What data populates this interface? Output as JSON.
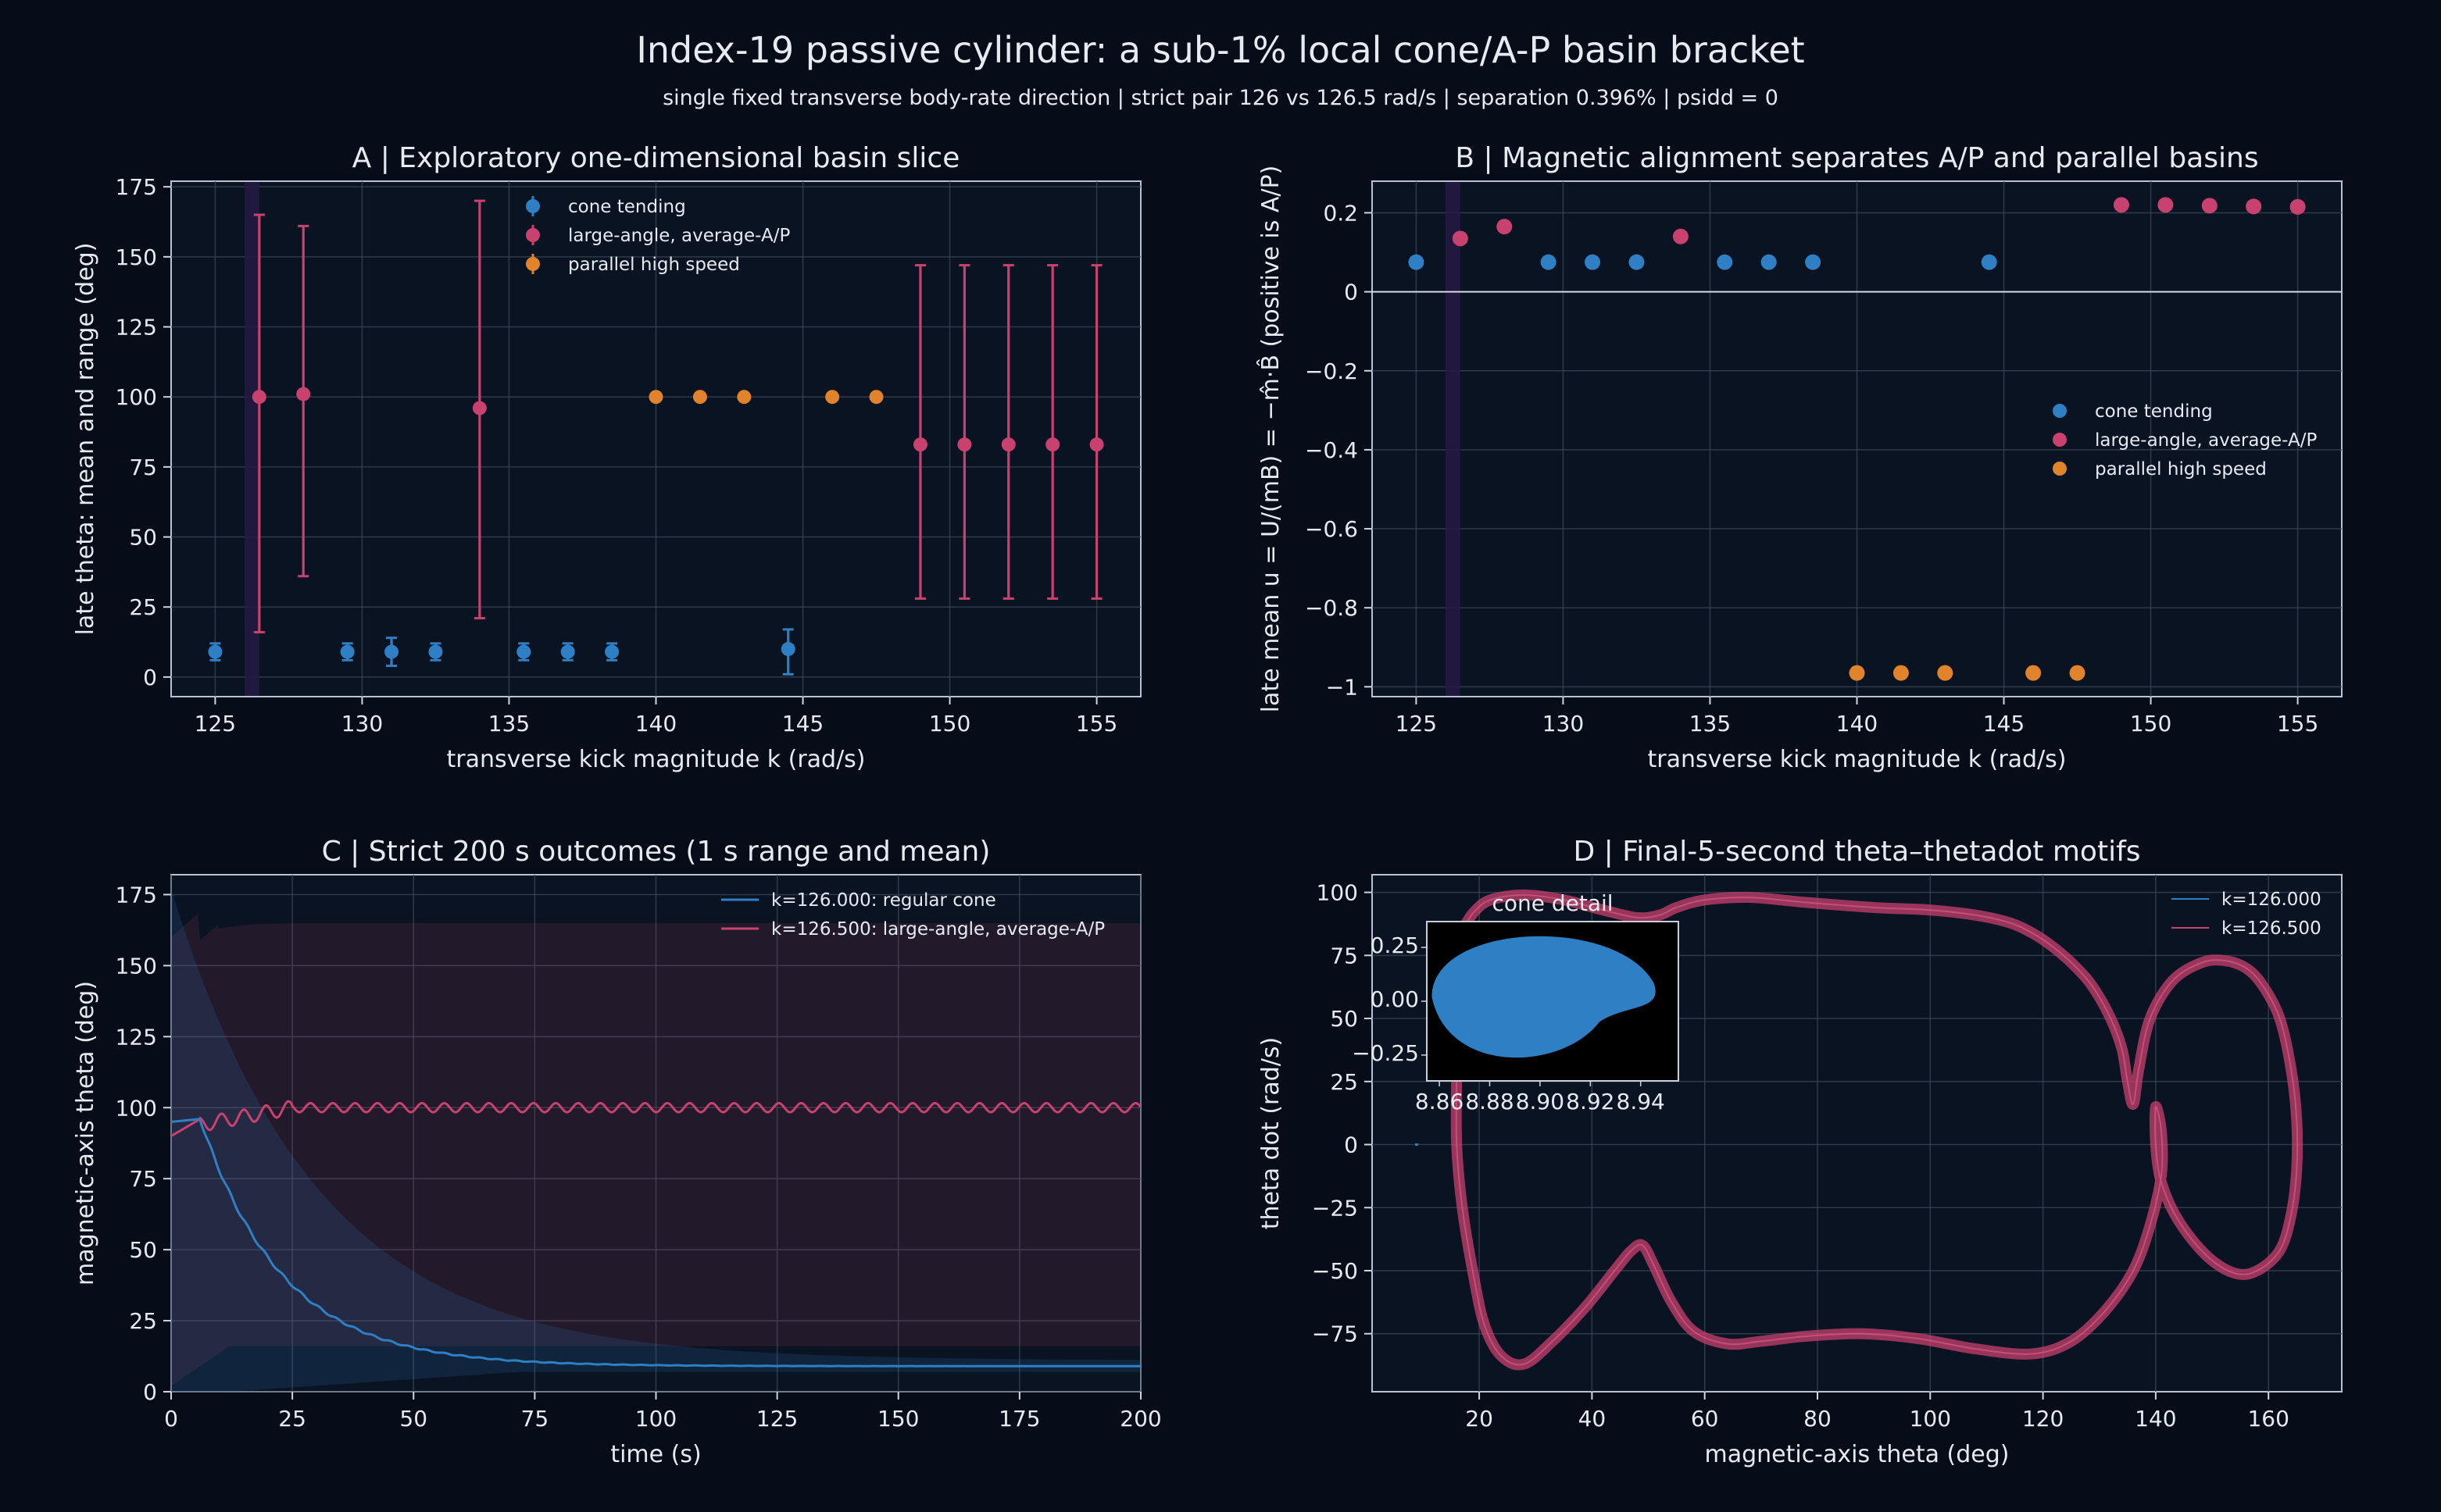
{
  "figure": {
    "title": "Index-19 passive cylinder: a sub-1% local cone/A-P basin bracket",
    "subtitle": "single fixed transverse body-rate direction  |  strict pair 126 vs 126.5 rad/s  |  separation 0.396%  |  psidd = 0"
  },
  "colors": {
    "background": "#060d18",
    "panel": "#0a1322",
    "cone": "#2f7fc4",
    "aap": "#c9426f",
    "parallel": "#e0832a",
    "strict_band": "#241b44"
  },
  "chart_data": [
    {
      "id": "A",
      "type": "scatter",
      "title": "A  |  Exploratory one-dimensional basin slice",
      "xlabel": "transverse kick magnitude k (rad/s)",
      "ylabel": "late theta: mean and range (deg)",
      "xlim": [
        123.5,
        156.5
      ],
      "ylim": [
        -7,
        177
      ],
      "xticks": [
        125,
        130,
        135,
        140,
        145,
        150,
        155
      ],
      "yticks": [
        0,
        25,
        50,
        75,
        100,
        125,
        150,
        175
      ],
      "grid": true,
      "legend_position": "top-center",
      "strict_band": [
        126,
        126.5
      ],
      "series": [
        {
          "name": "cone tending",
          "color_key": "cone",
          "points": [
            {
              "x": 125,
              "y": 9,
              "lo": 6,
              "hi": 12
            },
            {
              "x": 129.5,
              "y": 9,
              "lo": 6,
              "hi": 12
            },
            {
              "x": 131,
              "y": 9,
              "lo": 4,
              "hi": 14
            },
            {
              "x": 132.5,
              "y": 9,
              "lo": 6,
              "hi": 12
            },
            {
              "x": 135.5,
              "y": 9,
              "lo": 6,
              "hi": 12
            },
            {
              "x": 137,
              "y": 9,
              "lo": 6,
              "hi": 12
            },
            {
              "x": 138.5,
              "y": 9,
              "lo": 6,
              "hi": 12
            },
            {
              "x": 144.5,
              "y": 10,
              "lo": 1,
              "hi": 17
            }
          ]
        },
        {
          "name": "large-angle, average-A/P",
          "color_key": "aap",
          "points": [
            {
              "x": 126.5,
              "y": 100,
              "lo": 16,
              "hi": 165
            },
            {
              "x": 128,
              "y": 101,
              "lo": 36,
              "hi": 161
            },
            {
              "x": 134,
              "y": 96,
              "lo": 21,
              "hi": 170
            },
            {
              "x": 149,
              "y": 83,
              "lo": 28,
              "hi": 147
            },
            {
              "x": 150.5,
              "y": 83,
              "lo": 28,
              "hi": 147
            },
            {
              "x": 152,
              "y": 83,
              "lo": 28,
              "hi": 147
            },
            {
              "x": 153.5,
              "y": 83,
              "lo": 28,
              "hi": 147
            },
            {
              "x": 155,
              "y": 83,
              "lo": 28,
              "hi": 147
            }
          ]
        },
        {
          "name": "parallel high speed",
          "color_key": "parallel",
          "points": [
            {
              "x": 140,
              "y": 100,
              "lo": 100,
              "hi": 100
            },
            {
              "x": 141.5,
              "y": 100,
              "lo": 100,
              "hi": 100
            },
            {
              "x": 143,
              "y": 100,
              "lo": 100,
              "hi": 100
            },
            {
              "x": 146,
              "y": 100,
              "lo": 100,
              "hi": 100
            },
            {
              "x": 147.5,
              "y": 100,
              "lo": 100,
              "hi": 100
            }
          ]
        }
      ]
    },
    {
      "id": "B",
      "type": "scatter",
      "title": "B  |  Magnetic alignment separates A/P and parallel basins",
      "xlabel": "transverse kick magnitude k (rad/s)",
      "ylabel": "late mean u = U/(mB) = −m̂·B̂ (positive is A/P)",
      "xlim": [
        123.5,
        156.5
      ],
      "ylim": [
        -1.025,
        0.28
      ],
      "xticks": [
        125,
        130,
        135,
        140,
        145,
        150,
        155
      ],
      "yticks": [
        -1.0,
        -0.8,
        -0.6,
        -0.4,
        -0.2,
        0.0,
        0.2
      ],
      "grid": true,
      "legend_position": "center-right",
      "zero_line": 0,
      "strict_band": [
        126,
        126.5
      ],
      "series": [
        {
          "name": "cone tending",
          "color_key": "cone",
          "points": [
            {
              "x": 125,
              "y": 0.075
            },
            {
              "x": 129.5,
              "y": 0.075
            },
            {
              "x": 131,
              "y": 0.075
            },
            {
              "x": 132.5,
              "y": 0.075
            },
            {
              "x": 135.5,
              "y": 0.075
            },
            {
              "x": 137,
              "y": 0.075
            },
            {
              "x": 138.5,
              "y": 0.075
            },
            {
              "x": 144.5,
              "y": 0.075
            }
          ]
        },
        {
          "name": "large-angle, average-A/P",
          "color_key": "aap",
          "points": [
            {
              "x": 126.5,
              "y": 0.135
            },
            {
              "x": 128,
              "y": 0.165
            },
            {
              "x": 134,
              "y": 0.14
            },
            {
              "x": 149,
              "y": 0.22
            },
            {
              "x": 150.5,
              "y": 0.22
            },
            {
              "x": 152,
              "y": 0.218
            },
            {
              "x": 153.5,
              "y": 0.216
            },
            {
              "x": 155,
              "y": 0.215
            }
          ]
        },
        {
          "name": "parallel high speed",
          "color_key": "parallel",
          "points": [
            {
              "x": 140,
              "y": -0.965
            },
            {
              "x": 141.5,
              "y": -0.965
            },
            {
              "x": 143,
              "y": -0.965
            },
            {
              "x": 146,
              "y": -0.965
            },
            {
              "x": 147.5,
              "y": -0.965
            }
          ]
        }
      ]
    },
    {
      "id": "C",
      "type": "line",
      "title": "C  |  Strict 200 s outcomes (1 s range and mean)",
      "xlabel": "time (s)",
      "ylabel": "magnetic-axis theta (deg)",
      "xlim": [
        0,
        200
      ],
      "ylim": [
        0,
        182
      ],
      "xticks": [
        0,
        25,
        50,
        75,
        100,
        125,
        150,
        175,
        200
      ],
      "yticks": [
        0,
        25,
        50,
        75,
        100,
        125,
        150,
        175
      ],
      "grid": true,
      "legend_position": "top-right",
      "series": [
        {
          "name": "k=126.000: regular cone",
          "color_key": "cone",
          "model": "decay",
          "start": 95,
          "peak_time": 6,
          "peak": 96,
          "final": 9,
          "tau": 17,
          "band_upper_start": 175,
          "band_upper_tau": 30,
          "band_lower": 0
        },
        {
          "name": "k=126.500: large-angle, average-A/P",
          "color_key": "aap",
          "model": "oscillate",
          "start": 90,
          "settle": 100,
          "settle_time": 25,
          "osc_amp": 1.6,
          "osc_period": 4.6,
          "band_upper": 165,
          "band_lower": 16
        }
      ]
    },
    {
      "id": "D",
      "type": "line",
      "title": "D  |  Final-5-second theta–thetadot motifs",
      "xlabel": "magnetic-axis theta (deg)",
      "ylabel": "theta dot (rad/s)",
      "xlim": [
        1,
        173
      ],
      "ylim": [
        -98,
        107
      ],
      "xticks": [
        20,
        40,
        60,
        80,
        100,
        120,
        140,
        160
      ],
      "yticks": [
        -75,
        -50,
        -25,
        0,
        25,
        50,
        75,
        100
      ],
      "grid": true,
      "legend_position": "top-right",
      "series": [
        {
          "name": "k=126.000",
          "color_key": "cone"
        },
        {
          "name": "k=126.500",
          "color_key": "aap"
        }
      ],
      "orbit_k126_5": [
        [
          17,
          85
        ],
        [
          19,
          92
        ],
        [
          22,
          97
        ],
        [
          28,
          99
        ],
        [
          35,
          97
        ],
        [
          42,
          93
        ],
        [
          48,
          90
        ],
        [
          52,
          91
        ],
        [
          55,
          94
        ],
        [
          60,
          97
        ],
        [
          68,
          98
        ],
        [
          78,
          96
        ],
        [
          90,
          94
        ],
        [
          100,
          93
        ],
        [
          108,
          91
        ],
        [
          114,
          88
        ],
        [
          118,
          84
        ],
        [
          122,
          78
        ],
        [
          126,
          70
        ],
        [
          129,
          62
        ],
        [
          132,
          50
        ],
        [
          134,
          38
        ],
        [
          135,
          25
        ],
        [
          136,
          16
        ],
        [
          137,
          30
        ],
        [
          139,
          50
        ],
        [
          143,
          65
        ],
        [
          148,
          72
        ],
        [
          152,
          73
        ],
        [
          156,
          70
        ],
        [
          159,
          63
        ],
        [
          162,
          50
        ],
        [
          164,
          30
        ],
        [
          165,
          10
        ],
        [
          165,
          -10
        ],
        [
          164,
          -28
        ],
        [
          162,
          -42
        ],
        [
          158,
          -50
        ],
        [
          154,
          -51
        ],
        [
          149,
          -44
        ],
        [
          144,
          -30
        ],
        [
          141,
          -15
        ],
        [
          140,
          0
        ],
        [
          140,
          15
        ],
        [
          141,
          5
        ],
        [
          141,
          -12
        ],
        [
          139,
          -32
        ],
        [
          136,
          -50
        ],
        [
          131,
          -66
        ],
        [
          125,
          -78
        ],
        [
          118,
          -83
        ],
        [
          108,
          -81
        ],
        [
          98,
          -77
        ],
        [
          88,
          -75
        ],
        [
          78,
          -76
        ],
        [
          70,
          -78
        ],
        [
          64,
          -79
        ],
        [
          58,
          -74
        ],
        [
          54,
          -62
        ],
        [
          51,
          -48
        ],
        [
          49,
          -40
        ],
        [
          47,
          -42
        ],
        [
          44,
          -50
        ],
        [
          39,
          -64
        ],
        [
          33,
          -78
        ],
        [
          28,
          -87
        ],
        [
          24,
          -84
        ],
        [
          21,
          -72
        ],
        [
          19,
          -52
        ],
        [
          17,
          -25
        ],
        [
          16,
          0
        ],
        [
          16,
          30
        ],
        [
          16,
          55
        ],
        [
          17,
          85
        ]
      ],
      "inset": {
        "title": "cone detail",
        "xlim": [
          8.855,
          8.955
        ],
        "ylim": [
          -0.37,
          0.37
        ],
        "xticks": [
          8.86,
          8.88,
          8.9,
          8.92,
          8.94
        ],
        "yticks": [
          -0.25,
          0.0,
          0.25
        ],
        "ytick_labels": [
          "−0.25",
          "0.00",
          "0.25"
        ],
        "blob_center": [
          8.9,
          0.02
        ],
        "blob_radii": [
          0.043,
          0.33
        ]
      }
    }
  ]
}
